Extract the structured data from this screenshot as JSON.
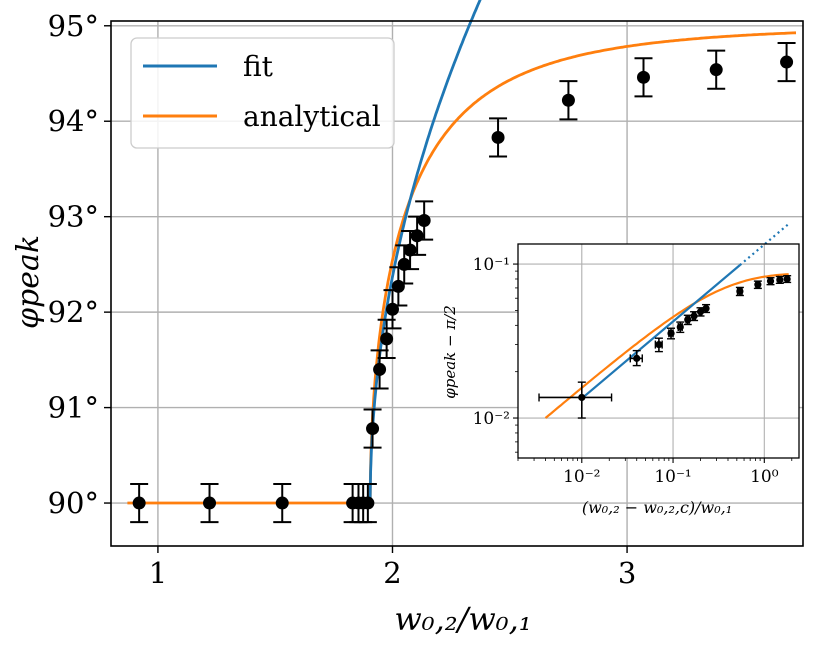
{
  "chart_data": [
    {
      "id": "main",
      "type": "line+errorbar",
      "xlabel": "w₀,₂/w₀,₁",
      "ylabel": "φpeak",
      "xlim": [
        0.8,
        3.75
      ],
      "ylim": [
        89.55,
        95.05
      ],
      "xticks": [
        1,
        2,
        3
      ],
      "xtick_labels": [
        "1",
        "2",
        "3"
      ],
      "yticks": [
        90,
        91,
        92,
        93,
        94,
        95
      ],
      "ytick_labels": [
        "90°",
        "91°",
        "92°",
        "93°",
        "94°",
        "95°"
      ],
      "grid": true,
      "legend": {
        "location": "top-left",
        "entries": [
          {
            "label": "fit",
            "color": "#1f77b4"
          },
          {
            "label": "analytical",
            "color": "#ff7f0e"
          }
        ]
      },
      "critical_x": 1.905,
      "fit_curve": {
        "name": "fit",
        "color": "#1f77b4",
        "amplitude": 7.7,
        "exponent": 0.5,
        "solid_until_x": 2.45,
        "dotted_until_x": 2.75
      },
      "analytical_curve": {
        "name": "analytical",
        "color": "#ff7f0e",
        "plateau": 90,
        "amplitude_deg": 5.0,
        "exponent": 0.5,
        "scale": 0.42
      },
      "points": [
        {
          "x": 0.92,
          "y": 90.0,
          "yerr": 0.2
        },
        {
          "x": 1.22,
          "y": 90.0,
          "yerr": 0.2
        },
        {
          "x": 1.53,
          "y": 90.0,
          "yerr": 0.2
        },
        {
          "x": 1.83,
          "y": 90.0,
          "yerr": 0.2
        },
        {
          "x": 1.855,
          "y": 90.0,
          "yerr": 0.2
        },
        {
          "x": 1.875,
          "y": 90.0,
          "yerr": 0.2
        },
        {
          "x": 1.895,
          "y": 90.0,
          "yerr": 0.2
        },
        {
          "x": 1.915,
          "y": 90.78,
          "yerr": 0.2
        },
        {
          "x": 1.945,
          "y": 91.4,
          "yerr": 0.2
        },
        {
          "x": 1.975,
          "y": 91.72,
          "yerr": 0.2
        },
        {
          "x": 2.0,
          "y": 92.03,
          "yerr": 0.2
        },
        {
          "x": 2.025,
          "y": 92.27,
          "yerr": 0.2
        },
        {
          "x": 2.05,
          "y": 92.5,
          "yerr": 0.2
        },
        {
          "x": 2.075,
          "y": 92.65,
          "yerr": 0.2
        },
        {
          "x": 2.105,
          "y": 92.8,
          "yerr": 0.2
        },
        {
          "x": 2.135,
          "y": 92.96,
          "yerr": 0.2
        },
        {
          "x": 2.45,
          "y": 93.83,
          "yerr": 0.2
        },
        {
          "x": 2.75,
          "y": 94.22,
          "yerr": 0.2
        },
        {
          "x": 3.07,
          "y": 94.46,
          "yerr": 0.2
        },
        {
          "x": 3.38,
          "y": 94.54,
          "yerr": 0.2
        },
        {
          "x": 3.68,
          "y": 94.62,
          "yerr": 0.2
        }
      ]
    },
    {
      "id": "inset",
      "type": "loglog+errorbar",
      "xlabel": "(w₀,₂ − w₀,₂,c)/w₀,₁",
      "ylabel": "φpeak − π/2",
      "xlim": [
        0.002,
        2.4
      ],
      "ylim": [
        0.0055,
        0.135
      ],
      "xticks": [
        0.01,
        0.1,
        1
      ],
      "xtick_labels": [
        "10⁻²",
        "10⁻¹",
        "10⁰"
      ],
      "yticks": [
        0.01,
        0.1
      ],
      "ytick_labels": [
        "10⁻²",
        "10⁻¹"
      ],
      "grid": true,
      "fit_line": {
        "color": "#1f77b4",
        "x_start": 0.01,
        "x_solid_end": 0.54,
        "x_dotted_end": 1.85
      },
      "analytical_line": {
        "color": "#ff7f0e",
        "x_start": 0.004,
        "x_end": 1.85
      },
      "points": [
        {
          "x": 0.01,
          "y": 0.0136,
          "xerr_lo": 0.0066,
          "xerr_hi": 0.0112,
          "yerr_lo": 0.0036,
          "yerr_hi": 0.0035
        },
        {
          "x": 0.04,
          "y": 0.0244,
          "xerr_lo": 0.006,
          "xerr_hi": 0.006,
          "yerr_lo": 0.0025,
          "yerr_hi": 0.003
        },
        {
          "x": 0.07,
          "y": 0.03,
          "xerr_lo": 0.006,
          "xerr_hi": 0.006,
          "yerr_lo": 0.003,
          "yerr_hi": 0.003
        },
        {
          "x": 0.095,
          "y": 0.0355,
          "xerr_lo": 0.005,
          "xerr_hi": 0.005,
          "yerr_lo": 0.0028,
          "yerr_hi": 0.0028
        },
        {
          "x": 0.12,
          "y": 0.039,
          "xerr_lo": 0.006,
          "xerr_hi": 0.006,
          "yerr_lo": 0.003,
          "yerr_hi": 0.003
        },
        {
          "x": 0.145,
          "y": 0.0435,
          "xerr_lo": 0.006,
          "xerr_hi": 0.006,
          "yerr_lo": 0.003,
          "yerr_hi": 0.003
        },
        {
          "x": 0.17,
          "y": 0.046,
          "xerr_lo": 0.006,
          "xerr_hi": 0.006,
          "yerr_lo": 0.003,
          "yerr_hi": 0.003
        },
        {
          "x": 0.2,
          "y": 0.049,
          "xerr_lo": 0.006,
          "xerr_hi": 0.006,
          "yerr_lo": 0.003,
          "yerr_hi": 0.003
        },
        {
          "x": 0.23,
          "y": 0.0515,
          "xerr_lo": 0.006,
          "xerr_hi": 0.006,
          "yerr_lo": 0.003,
          "yerr_hi": 0.003
        },
        {
          "x": 0.54,
          "y": 0.0665,
          "xerr_lo": 0.03,
          "xerr_hi": 0.03,
          "yerr_lo": 0.004,
          "yerr_hi": 0.004
        },
        {
          "x": 0.85,
          "y": 0.0735,
          "xerr_lo": 0.04,
          "xerr_hi": 0.04,
          "yerr_lo": 0.004,
          "yerr_hi": 0.004
        },
        {
          "x": 1.17,
          "y": 0.0775,
          "xerr_lo": 0.05,
          "xerr_hi": 0.05,
          "yerr_lo": 0.004,
          "yerr_hi": 0.004
        },
        {
          "x": 1.48,
          "y": 0.079,
          "xerr_lo": 0.05,
          "xerr_hi": 0.05,
          "yerr_lo": 0.004,
          "yerr_hi": 0.004
        },
        {
          "x": 1.78,
          "y": 0.08,
          "xerr_lo": 0.05,
          "xerr_hi": 0.05,
          "yerr_lo": 0.004,
          "yerr_hi": 0.004
        }
      ]
    }
  ]
}
